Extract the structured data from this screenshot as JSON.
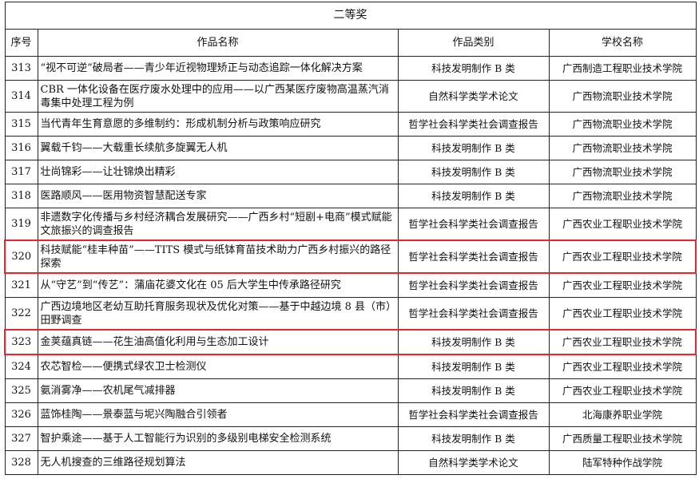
{
  "title": "二等奖",
  "columns": [
    "序号",
    "作品名称",
    "作品类别",
    "学校名称"
  ],
  "highlight_color": "#e0282e",
  "rows": [
    {
      "no": "313",
      "name": "“视不可逆”破局者——青少年近视物理矫正与动态追踪一体化解决方案",
      "category": "科技发明制作 B 类",
      "school": "广西制造工程职业技术学院",
      "highlighted": false
    },
    {
      "no": "314",
      "name": "CBR 一体化设备在医疗废水处理中的应用——以广西某医疗废物高温蒸汽消毒集中处理工程为例",
      "category": "自然科学类学术论文",
      "school": "广西物流职业技术学院",
      "highlighted": false
    },
    {
      "no": "315",
      "name": "当代青年生育意愿的多维制约：形成机制分析与政策响应研究",
      "category": "哲学社会科学类社会调查报告",
      "school": "广西物流职业技术学院",
      "highlighted": false
    },
    {
      "no": "316",
      "name": "翼载千钧——大载重长续航多旋翼无人机",
      "category": "科技发明制作 B 类",
      "school": "广西物流职业技术学院",
      "highlighted": false
    },
    {
      "no": "317",
      "name": "壮尚锦彩——让壮锦焕出精彩",
      "category": "科技发明制作 B 类",
      "school": "广西物流职业技术学院",
      "highlighted": false
    },
    {
      "no": "318",
      "name": "医路顺风——医用物资智慧配送专家",
      "category": "科技发明制作 B 类",
      "school": "广西物流职业技术学院",
      "highlighted": false
    },
    {
      "no": "319",
      "name": "非遗数字化传播与乡村经济耦合发展研究——广西乡村“短剧+电商”模式赋能文旅振兴的调查报告",
      "category": "哲学社会科学类社会调查报告",
      "school": "广西农业工程职业技术学院",
      "highlighted": false
    },
    {
      "no": "320",
      "name": "科技赋能“桂丰种苗”——TITS 模式与纸钵育苗技术助力广西乡村振兴的路径探索",
      "category": "哲学社会科学类社会调查报告",
      "school": "广西农业工程职业技术学院",
      "highlighted": true
    },
    {
      "no": "321",
      "name": "从“守艺”到“传艺”：蒲庙花婆文化在 05 后大学生中传承路径研究",
      "category": "哲学社会科学类社会调查报告",
      "school": "广西农业工程职业技术学院",
      "highlighted": false
    },
    {
      "no": "322",
      "name": "广西边境地区老幼互助托育服务现状及优化对策——基于中越边境 8 县（市）田野调查",
      "category": "哲学社会科学类社会调查报告",
      "school": "广西农业工程职业技术学院",
      "highlighted": false
    },
    {
      "no": "323",
      "name": "金荚蕴真链——花生油高值化利用与生态加工设计",
      "category": "科技发明制作 B 类",
      "school": "广西农业工程职业技术学院",
      "highlighted": true
    },
    {
      "no": "324",
      "name": "农芯智检——便携式绿农卫士检测仪",
      "category": "科技发明制作 B 类",
      "school": "广西农业工程职业技术学院",
      "highlighted": false
    },
    {
      "no": "325",
      "name": "氨消雾净——农机尾气减排器",
      "category": "科技发明制作 B 类",
      "school": "广西农业工程职业技术学院",
      "highlighted": false
    },
    {
      "no": "326",
      "name": "蓝饰桂陶——景泰蓝与坭兴陶融合引领者",
      "category": "哲学社会科学类社会调查报告",
      "school": "北海康养职业学院",
      "highlighted": false
    },
    {
      "no": "327",
      "name": "智护乘途——基于人工智能行为识别的多级别电梯安全检测系统",
      "category": "科技发明制作 B 类",
      "school": "广西质量工程职业技术学院",
      "highlighted": false
    },
    {
      "no": "328",
      "name": "无人机搜查的三维路径规划算法",
      "category": "自然科学类学术论文",
      "school": "陆军特种作战学院",
      "highlighted": false
    }
  ]
}
